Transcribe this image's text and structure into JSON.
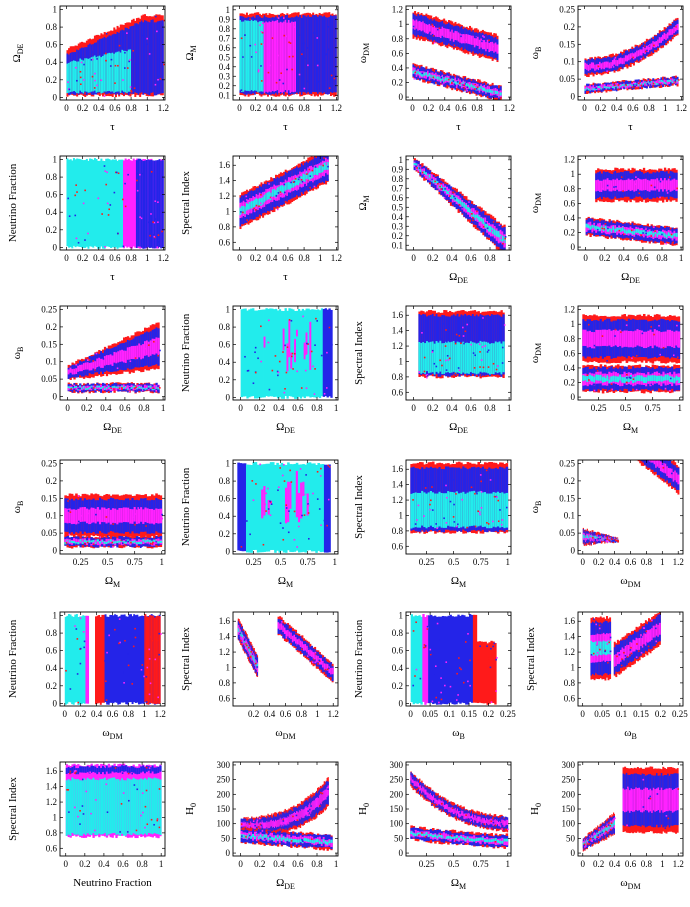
{
  "figure": {
    "description_colors": {
      "outer_band": "#ff1a1a",
      "middle_band": "#2424e8",
      "inner_band": "#ff22ff",
      "core": "#22ecec",
      "frame": "#000000"
    }
  },
  "chart_data": [
    {
      "type": "scatter",
      "xlabel": "τ",
      "ylabel": "Ω",
      "ylabel_sub": "DE",
      "x_ticks": [
        "0",
        "0.2",
        "0.4",
        "0.6",
        "0.8",
        "1",
        "1.2"
      ],
      "y_ticks": [
        "0",
        "0.2",
        "0.4",
        "0.6",
        "0.8",
        "1"
      ],
      "xlim": [
        -0.08,
        1.22
      ],
      "ylim": [
        -0.03,
        1.04
      ]
    },
    {
      "type": "scatter",
      "xlabel": "τ",
      "ylabel": "Ω",
      "ylabel_sub": "M",
      "x_ticks": [
        "0",
        "0.2",
        "0.4",
        "0.6",
        "0.8",
        "1",
        "1.2"
      ],
      "y_ticks": [
        "0.1",
        "0.2",
        "0.3",
        "0.4",
        "0.5",
        "0.6",
        "0.7",
        "0.8",
        "0.9",
        "1"
      ],
      "xlim": [
        -0.08,
        1.22
      ],
      "ylim": [
        0.05,
        1.04
      ]
    },
    {
      "type": "scatter",
      "xlabel": "τ",
      "ylabel": "ω",
      "ylabel_sub": "DM",
      "x_ticks": [
        "0",
        "0.2",
        "0.4",
        "0.6",
        "0.8",
        "1",
        "1.2"
      ],
      "y_ticks": [
        "0",
        "0.2",
        "0.4",
        "0.6",
        "0.8",
        "1",
        "1.2"
      ],
      "xlim": [
        -0.08,
        1.22
      ],
      "ylim": [
        -0.04,
        1.25
      ]
    },
    {
      "type": "scatter",
      "xlabel": "τ",
      "ylabel": "ω",
      "ylabel_sub": "B",
      "x_ticks": [
        "0",
        "0.2",
        "0.4",
        "0.6",
        "0.8",
        "1",
        "1.2"
      ],
      "y_ticks": [
        "0",
        "0.05",
        "0.1",
        "0.15",
        "0.2",
        "0.25"
      ],
      "xlim": [
        -0.08,
        1.22
      ],
      "ylim": [
        -0.01,
        0.26
      ]
    },
    {
      "type": "scatter",
      "xlabel": "τ",
      "ylabel": "Neutrino Fraction",
      "ylabel_sub": "",
      "x_ticks": [
        "0",
        "0.2",
        "0.4",
        "0.6",
        "0.8",
        "1",
        "1.2"
      ],
      "y_ticks": [
        "0",
        "0.2",
        "0.4",
        "0.6",
        "0.8",
        "1"
      ],
      "xlim": [
        -0.08,
        1.22
      ],
      "ylim": [
        -0.03,
        1.04
      ]
    },
    {
      "type": "scatter",
      "xlabel": "τ",
      "ylabel": "Spectral Index",
      "ylabel_sub": "",
      "x_ticks": [
        "0",
        "0.2",
        "0.4",
        "0.6",
        "0.8",
        "1",
        "1.2"
      ],
      "y_ticks": [
        "0.6",
        "0.8",
        "1",
        "1.2",
        "1.4",
        "1.6"
      ],
      "xlim": [
        -0.08,
        1.22
      ],
      "ylim": [
        0.5,
        1.72
      ]
    },
    {
      "type": "scatter",
      "xlabel": "Ω",
      "xlabel_sub": "DE",
      "ylabel": "Ω",
      "ylabel_sub": "M",
      "x_ticks": [
        "0",
        "0.2",
        "0.4",
        "0.6",
        "0.8",
        "1"
      ],
      "y_ticks": [
        "0.1",
        "0.2",
        "0.3",
        "0.4",
        "0.5",
        "0.6",
        "0.7",
        "0.8",
        "0.9",
        "1"
      ],
      "xlim": [
        -0.08,
        1.02
      ],
      "ylim": [
        0.05,
        1.04
      ]
    },
    {
      "type": "scatter",
      "xlabel": "Ω",
      "xlabel_sub": "DE",
      "ylabel": "ω",
      "ylabel_sub": "DM",
      "x_ticks": [
        "0",
        "0.2",
        "0.4",
        "0.6",
        "0.8",
        "1"
      ],
      "y_ticks": [
        "0",
        "0.2",
        "0.4",
        "0.6",
        "0.8",
        "1",
        "1.2"
      ],
      "xlim": [
        -0.08,
        1.02
      ],
      "ylim": [
        -0.04,
        1.25
      ]
    },
    {
      "type": "scatter",
      "xlabel": "Ω",
      "xlabel_sub": "DE",
      "ylabel": "ω",
      "ylabel_sub": "B",
      "x_ticks": [
        "0",
        "0.2",
        "0.4",
        "0.6",
        "0.8",
        "1"
      ],
      "y_ticks": [
        "0",
        "0.05",
        "0.1",
        "0.15",
        "0.2",
        "0.25"
      ],
      "xlim": [
        -0.08,
        1.02
      ],
      "ylim": [
        -0.01,
        0.26
      ]
    },
    {
      "type": "scatter",
      "xlabel": "Ω",
      "xlabel_sub": "DE",
      "ylabel": "Neutrino Fraction",
      "ylabel_sub": "",
      "x_ticks": [
        "0",
        "0.2",
        "0.4",
        "0.6",
        "0.8",
        "1"
      ],
      "y_ticks": [
        "0",
        "0.2",
        "0.4",
        "0.6",
        "0.8",
        "1"
      ],
      "xlim": [
        -0.08,
        1.02
      ],
      "ylim": [
        -0.03,
        1.04
      ]
    },
    {
      "type": "scatter",
      "xlabel": "Ω",
      "xlabel_sub": "DE",
      "ylabel": "Spectral Index",
      "ylabel_sub": "",
      "x_ticks": [
        "0",
        "0.2",
        "0.4",
        "0.6",
        "0.8",
        "1"
      ],
      "y_ticks": [
        "0.6",
        "0.8",
        "1",
        "1.2",
        "1.4",
        "1.6"
      ],
      "xlim": [
        -0.08,
        1.02
      ],
      "ylim": [
        0.5,
        1.72
      ]
    },
    {
      "type": "scatter",
      "xlabel": "Ω",
      "xlabel_sub": "M",
      "ylabel": "ω",
      "ylabel_sub": "DM",
      "x_ticks": [
        "0.25",
        "0.5",
        "0.75",
        "1"
      ],
      "y_ticks": [
        "0",
        "0.2",
        "0.4",
        "0.6",
        "0.8",
        "1",
        "1.2"
      ],
      "xlim": [
        0.06,
        1.03
      ],
      "ylim": [
        -0.04,
        1.25
      ]
    },
    {
      "type": "scatter",
      "xlabel": "Ω",
      "xlabel_sub": "M",
      "ylabel": "ω",
      "ylabel_sub": "B",
      "x_ticks": [
        "0.25",
        "0.5",
        "0.75",
        "1"
      ],
      "y_ticks": [
        "0",
        "0.05",
        "0.1",
        "0.15",
        "0.2",
        "0.25"
      ],
      "xlim": [
        0.06,
        1.03
      ],
      "ylim": [
        -0.01,
        0.26
      ]
    },
    {
      "type": "scatter",
      "xlabel": "Ω",
      "xlabel_sub": "M",
      "ylabel": "Neutrino Fraction",
      "ylabel_sub": "",
      "x_ticks": [
        "0.25",
        "0.5",
        "0.75",
        "1"
      ],
      "y_ticks": [
        "0",
        "0.2",
        "0.4",
        "0.6",
        "0.8",
        "1"
      ],
      "xlim": [
        0.06,
        1.03
      ],
      "ylim": [
        -0.03,
        1.04
      ]
    },
    {
      "type": "scatter",
      "xlabel": "Ω",
      "xlabel_sub": "M",
      "ylabel": "Spectral Index",
      "ylabel_sub": "",
      "x_ticks": [
        "0.25",
        "0.5",
        "0.75",
        "1"
      ],
      "y_ticks": [
        "0.6",
        "0.8",
        "1",
        "1.2",
        "1.4",
        "1.6"
      ],
      "xlim": [
        0.06,
        1.03
      ],
      "ylim": [
        0.5,
        1.72
      ]
    },
    {
      "type": "scatter",
      "xlabel": "ω",
      "xlabel_sub": "DM",
      "ylabel": "ω",
      "ylabel_sub": "B",
      "x_ticks": [
        "0",
        "0.2",
        "0.4",
        "0.6",
        "0.8",
        "1",
        "1.2"
      ],
      "y_ticks": [
        "0",
        "0.05",
        "0.1",
        "0.15",
        "0.2",
        "0.25"
      ],
      "xlim": [
        -0.06,
        1.26
      ],
      "ylim": [
        -0.01,
        0.26
      ]
    },
    {
      "type": "scatter",
      "xlabel": "ω",
      "xlabel_sub": "DM",
      "ylabel": "Neutrino Fraction",
      "ylabel_sub": "",
      "x_ticks": [
        "0",
        "0.2",
        "0.4",
        "0.6",
        "0.8",
        "1",
        "1.2"
      ],
      "y_ticks": [
        "0",
        "0.2",
        "0.4",
        "0.6",
        "0.8",
        "1"
      ],
      "xlim": [
        -0.06,
        1.26
      ],
      "ylim": [
        -0.03,
        1.04
      ]
    },
    {
      "type": "scatter",
      "xlabel": "ω",
      "xlabel_sub": "DM",
      "ylabel": "Spectral Index",
      "ylabel_sub": "",
      "x_ticks": [
        "0.2",
        "0.4",
        "0.6",
        "0.8",
        "1",
        "1.2"
      ],
      "y_ticks": [
        "0.6",
        "0.8",
        "1",
        "1.2",
        "1.4",
        "1.6"
      ],
      "xlim": [
        -0.06,
        1.26
      ],
      "ylim": [
        0.5,
        1.72
      ]
    },
    {
      "type": "scatter",
      "xlabel": "ω",
      "xlabel_sub": "B",
      "ylabel": "Neutrino Fraction",
      "ylabel_sub": "",
      "x_ticks": [
        "0",
        "0.05",
        "0.1",
        "0.15",
        "0.2",
        "0.25"
      ],
      "y_ticks": [
        "0",
        "0.2",
        "0.4",
        "0.6",
        "0.8",
        "1"
      ],
      "xlim": [
        -0.012,
        0.258
      ],
      "ylim": [
        -0.03,
        1.04
      ]
    },
    {
      "type": "scatter",
      "xlabel": "ω",
      "xlabel_sub": "B",
      "ylabel": "Spectral Index",
      "ylabel_sub": "",
      "x_ticks": [
        "0",
        "0.05",
        "0.1",
        "0.15",
        "0.2",
        "0.25"
      ],
      "y_ticks": [
        "0.6",
        "0.8",
        "1",
        "1.2",
        "1.4",
        "1.6"
      ],
      "xlim": [
        -0.012,
        0.258
      ],
      "ylim": [
        0.5,
        1.72
      ]
    },
    {
      "type": "scatter",
      "xlabel": "Neutrino Fraction",
      "ylabel": "Spectral Index",
      "ylabel_sub": "",
      "x_ticks": [
        "0",
        "0.2",
        "0.4",
        "0.6",
        "0.8",
        "1"
      ],
      "y_ticks": [
        "0.6",
        "0.8",
        "1",
        "1.2",
        "1.4",
        "1.6"
      ],
      "xlim": [
        -0.06,
        1.04
      ],
      "ylim": [
        0.5,
        1.72
      ]
    },
    {
      "type": "scatter",
      "xlabel": "Ω",
      "xlabel_sub": "DE",
      "ylabel": "H",
      "ylabel_sub": "0",
      "x_ticks": [
        "0",
        "0.2",
        "0.4",
        "0.6",
        "0.8",
        "1"
      ],
      "y_ticks": [
        "0",
        "50",
        "100",
        "150",
        "200",
        "250",
        "300"
      ],
      "xlim": [
        -0.08,
        1.02
      ],
      "ylim": [
        -10,
        310
      ]
    },
    {
      "type": "scatter",
      "xlabel": "Ω",
      "xlabel_sub": "M",
      "ylabel": "H",
      "ylabel_sub": "0",
      "x_ticks": [
        "0.25",
        "0.5",
        "0.75",
        "1"
      ],
      "y_ticks": [
        "0",
        "50",
        "100",
        "150",
        "200",
        "250",
        "300"
      ],
      "xlim": [
        0.06,
        1.03
      ],
      "ylim": [
        -10,
        310
      ]
    },
    {
      "type": "scatter",
      "xlabel": "ω",
      "xlabel_sub": "DM",
      "ylabel": "H",
      "ylabel_sub": "0",
      "x_ticks": [
        "0",
        "0.2",
        "0.4",
        "0.6",
        "0.8",
        "1",
        "1.2"
      ],
      "y_ticks": [
        "0",
        "50",
        "100",
        "150",
        "200",
        "250",
        "300"
      ],
      "xlim": [
        -0.06,
        1.26
      ],
      "ylim": [
        -10,
        310
      ]
    }
  ]
}
